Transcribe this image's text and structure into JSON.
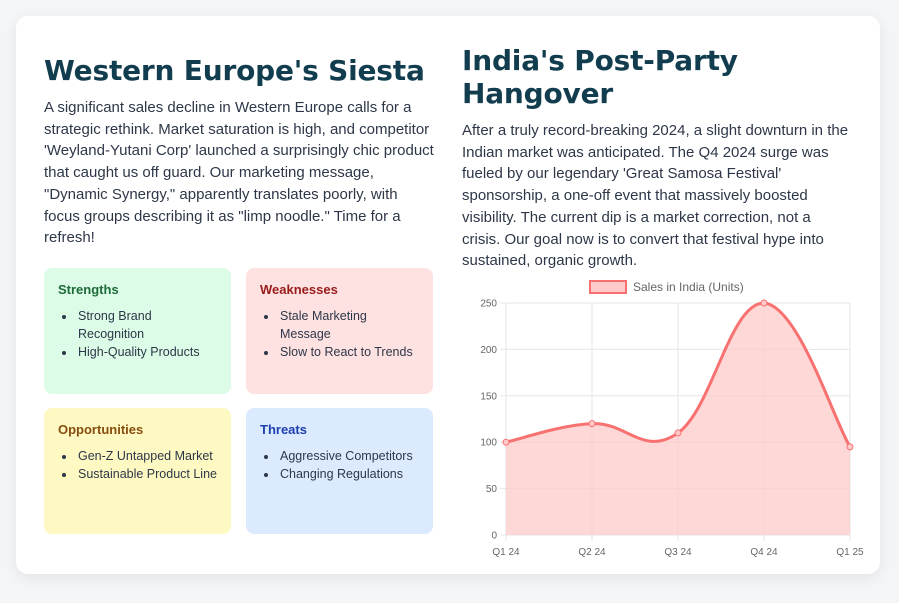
{
  "left": {
    "title": "Western Europe's Siesta",
    "body": "A significant sales decline in Western Europe calls for a strategic rethink. Market saturation is high, and competitor 'Weyland-Yutani Corp' launched a surprisingly chic product that caught us off guard. Our marketing message, \"Dynamic Synergy,\" apparently translates poorly, with focus groups describing it as \"limp noodle.\" Time for a refresh!"
  },
  "swot": {
    "strengths": {
      "title": "Strengths",
      "items": [
        "Strong Brand Recognition",
        "High-Quality Products"
      ]
    },
    "weaknesses": {
      "title": "Weaknesses",
      "items": [
        "Stale Marketing Message",
        "Slow to React to Trends"
      ]
    },
    "opportunities": {
      "title": "Opportunities",
      "items": [
        "Gen-Z Untapped Market",
        "Sustainable Product Line"
      ]
    },
    "threats": {
      "title": "Threats",
      "items": [
        "Aggressive Competitors",
        "Changing Regulations"
      ]
    }
  },
  "right": {
    "title": "India's Post-Party Hangover",
    "body": "After a truly record-breaking 2024, a slight downturn in the Indian market was anticipated. The Q4 2024 surge was fueled by our legendary 'Great Samosa Festival' sponsorship, a one-off event that massively boosted visibility. The current dip is a market correction, not a crisis. Our goal now is to convert that festival hype into sustained, organic growth."
  },
  "colors": {
    "line": "#f87171",
    "fill": "#fecaca",
    "title": "#123d4f"
  },
  "chart_data": {
    "type": "area",
    "categories": [
      "Q1 24",
      "Q2 24",
      "Q3 24",
      "Q4 24",
      "Q1 25"
    ],
    "series": [
      {
        "name": "Sales in India (Units)",
        "values": [
          100,
          120,
          110,
          250,
          95
        ]
      }
    ],
    "ylim": [
      0,
      250
    ],
    "yticks": [
      0,
      50,
      100,
      150,
      200,
      250
    ],
    "grid": true,
    "legend": "top"
  }
}
